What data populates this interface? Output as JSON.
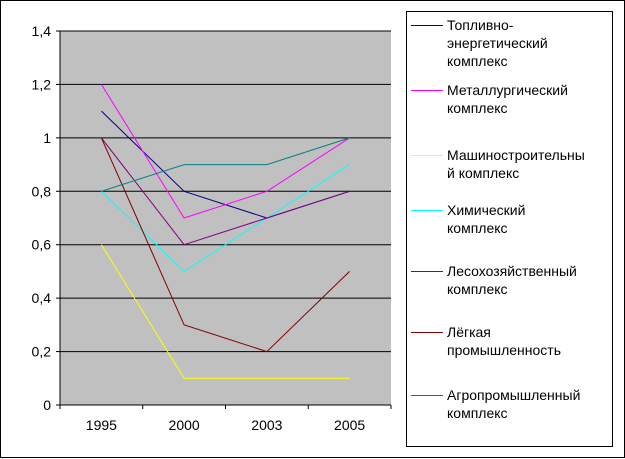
{
  "chart_data": {
    "type": "line",
    "categories": [
      "1995",
      "2000",
      "2003",
      "2005"
    ],
    "yticks": [
      "0",
      "0,2",
      "0,4",
      "0,6",
      "0,8",
      "1",
      "1,2",
      "1,4"
    ],
    "ylim": [
      0,
      1.4
    ],
    "grid": "horizontal",
    "legend_position": "right",
    "plot_background": "#C0C0C0",
    "series": [
      {
        "name": "Топливно-энергетический комплекс",
        "color": "#000080",
        "values": [
          1.1,
          0.8,
          0.7,
          0.8
        ]
      },
      {
        "name": "Металлургический комплекс",
        "color": "#FF00FF",
        "values": [
          1.2,
          0.7,
          0.8,
          1.0
        ]
      },
      {
        "name": "Машиностроительный комплекс",
        "color": "#FFFF00",
        "values": [
          0.6,
          0.1,
          0.1,
          0.1
        ]
      },
      {
        "name": "Химический комплекс",
        "color": "#00FFFF",
        "values": [
          0.8,
          0.5,
          0.7,
          0.9
        ]
      },
      {
        "name": "Лесохозяйственный комплекс",
        "color": "#800080",
        "values": [
          1.0,
          0.6,
          0.7,
          0.8
        ]
      },
      {
        "name": "Лёгкая промышленность",
        "color": "#800000",
        "values": [
          1.0,
          0.3,
          0.2,
          0.5
        ]
      },
      {
        "name": "Агропромышленный комплекс",
        "color": "#008080",
        "values": [
          0.8,
          0.9,
          0.9,
          1.0
        ]
      }
    ]
  },
  "legend": {
    "items": [
      {
        "lines": [
          "Топливно-",
          "энергетический",
          "комплекс"
        ]
      },
      {
        "lines": [
          "Металлургический",
          "комплекс"
        ]
      },
      {
        "lines": [
          "Машиностроительны",
          "й комплекс"
        ]
      },
      {
        "lines": [
          "Химический",
          "комплекс"
        ]
      },
      {
        "lines": [
          "Лесохозяйственный",
          "комплекс"
        ]
      },
      {
        "lines": [
          "Лёгкая",
          "промышленность"
        ]
      },
      {
        "lines": [
          "Агропромышленный",
          "комплекс"
        ]
      }
    ]
  }
}
